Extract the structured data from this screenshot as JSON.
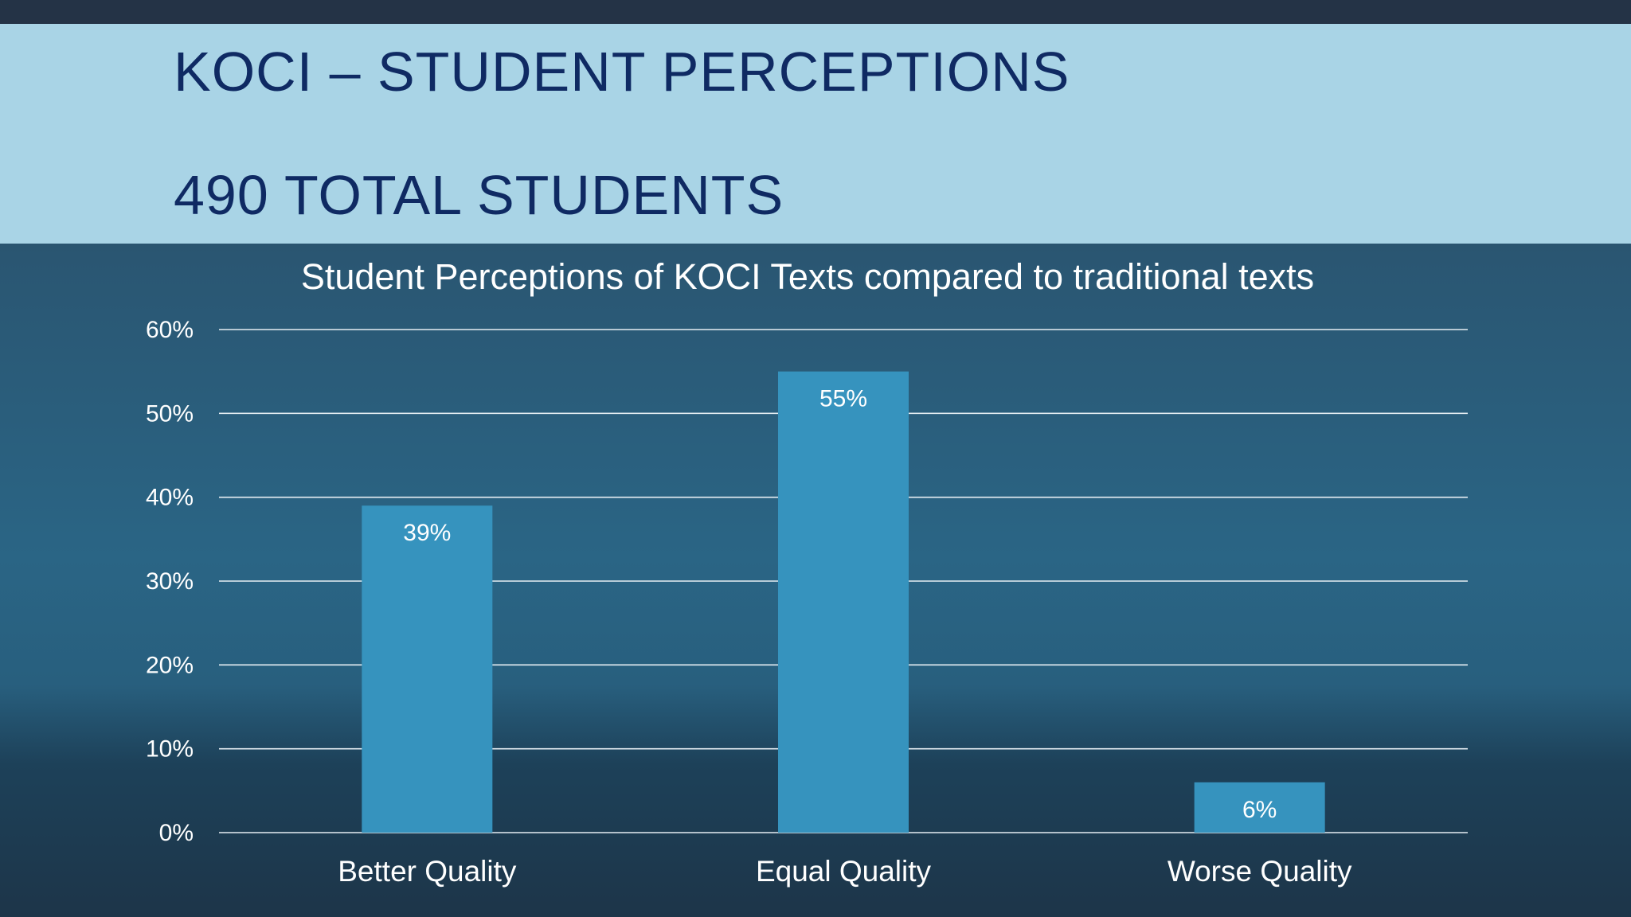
{
  "slide": {
    "title_line1": "KOCI – STUDENT PERCEPTIONS",
    "title_line2": "490 TOTAL STUDENTS"
  },
  "colors": {
    "header_bg": "#a9d4e6",
    "title_text": "#0f2a63",
    "bar_fill": "#3693be",
    "gridline": "#e6eef3",
    "label_text": "#ffffff"
  },
  "chart_data": {
    "type": "bar",
    "title": "Student Perceptions of KOCI Texts compared to traditional texts",
    "categories": [
      "Better Quality",
      "Equal Quality",
      "Worse Quality"
    ],
    "values": [
      39,
      55,
      6
    ],
    "data_labels": [
      "39%",
      "55%",
      "6%"
    ],
    "yticks": [
      0,
      10,
      20,
      30,
      40,
      50,
      60
    ],
    "ytick_labels": [
      "0%",
      "10%",
      "20%",
      "30%",
      "40%",
      "50%",
      "60%"
    ],
    "ylim": [
      0,
      60
    ],
    "xlabel": "",
    "ylabel": "",
    "grid": true,
    "legend": "none"
  }
}
